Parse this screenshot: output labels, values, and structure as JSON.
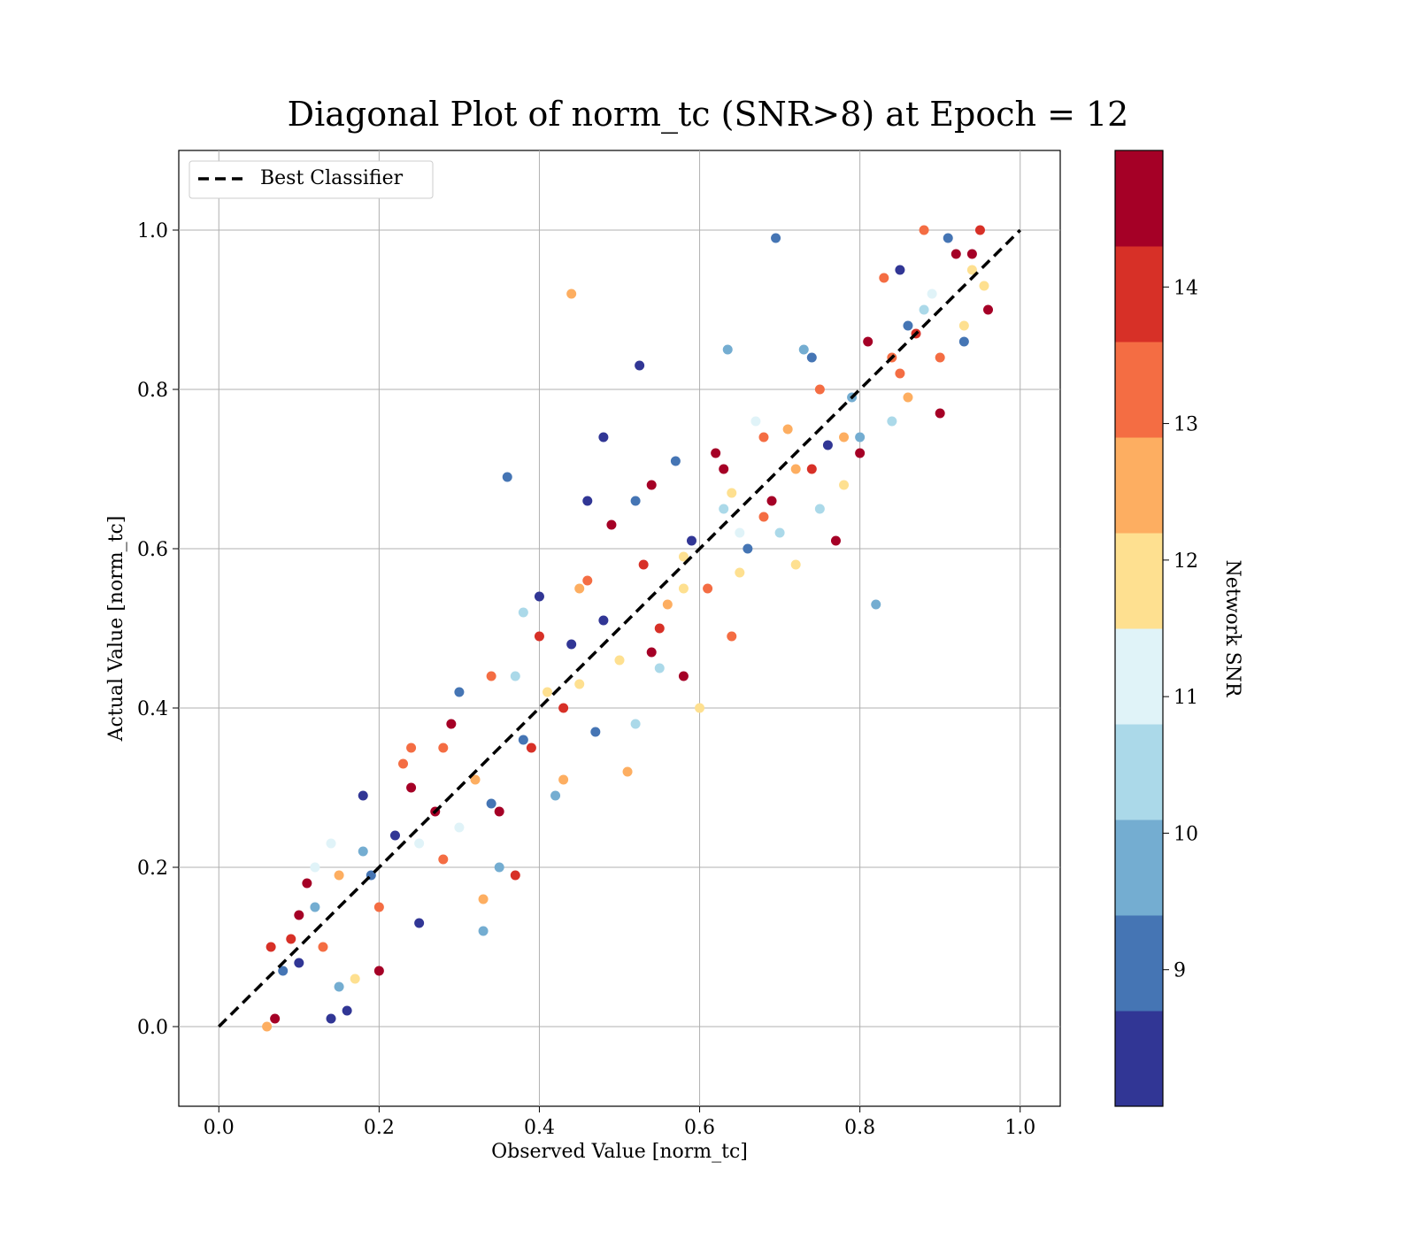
{
  "chart_data": {
    "type": "scatter",
    "title": "Diagonal Plot of norm_tc (SNR>8) at Epoch = 12",
    "xlabel": "Observed Value [norm_tc]",
    "ylabel": "Actual Value [norm_tc]",
    "xlim": [
      -0.05,
      1.05
    ],
    "ylim": [
      -0.1,
      1.1
    ],
    "xticks": [
      "0.0",
      "0.2",
      "0.4",
      "0.6",
      "0.8",
      "1.0"
    ],
    "yticks": [
      "0.0",
      "0.2",
      "0.4",
      "0.6",
      "0.8",
      "1.0"
    ],
    "grid": true,
    "legend": {
      "position": "top-left",
      "entries": [
        "Best Classifier"
      ]
    },
    "reference_line": {
      "label": "Best Classifier",
      "style": "dashed",
      "color": "#000000",
      "points": [
        [
          0,
          0
        ],
        [
          1,
          1
        ]
      ]
    },
    "colorbar": {
      "label": "Network SNR",
      "range": [
        8,
        15
      ],
      "ticks": [
        "9",
        "10",
        "11",
        "12",
        "13",
        "14"
      ],
      "tick_values": [
        9,
        10,
        11,
        12,
        13,
        14
      ],
      "colors": [
        "#313695",
        "#4575b4",
        "#74add1",
        "#abd9e9",
        "#e0f3f8",
        "#fee090",
        "#fdae61",
        "#f46d43",
        "#d73027",
        "#a50026"
      ]
    },
    "series": [
      {
        "points": [
          [
            0.06,
            0.0,
            12.5
          ],
          [
            0.07,
            0.01,
            14.5
          ],
          [
            0.065,
            0.1,
            13.8
          ],
          [
            0.08,
            0.07,
            9.2
          ],
          [
            0.09,
            0.11,
            14.2
          ],
          [
            0.1,
            0.08,
            8.5
          ],
          [
            0.11,
            0.18,
            14.6
          ],
          [
            0.12,
            0.15,
            9.8
          ],
          [
            0.13,
            0.1,
            13.2
          ],
          [
            0.14,
            0.23,
            10.8
          ],
          [
            0.15,
            0.19,
            12.8
          ],
          [
            0.16,
            0.02,
            8.6
          ],
          [
            0.17,
            0.06,
            11.5
          ],
          [
            0.18,
            0.29,
            8.4
          ],
          [
            0.19,
            0.19,
            8.8
          ],
          [
            0.2,
            0.07,
            14.7
          ],
          [
            0.22,
            0.24,
            8.7
          ],
          [
            0.23,
            0.33,
            12.9
          ],
          [
            0.24,
            0.3,
            14.4
          ],
          [
            0.25,
            0.23,
            11.4
          ],
          [
            0.27,
            0.27,
            14.6
          ],
          [
            0.28,
            0.35,
            13.0
          ],
          [
            0.29,
            0.38,
            14.5
          ],
          [
            0.3,
            0.42,
            9.1
          ],
          [
            0.32,
            0.31,
            12.7
          ],
          [
            0.33,
            0.12,
            9.7
          ],
          [
            0.34,
            0.44,
            13.1
          ],
          [
            0.35,
            0.27,
            14.8
          ],
          [
            0.36,
            0.69,
            9.3
          ],
          [
            0.37,
            0.44,
            10.3
          ],
          [
            0.38,
            0.52,
            10.5
          ],
          [
            0.39,
            0.35,
            13.8
          ],
          [
            0.4,
            0.54,
            8.5
          ],
          [
            0.41,
            0.42,
            12.1
          ],
          [
            0.42,
            0.29,
            9.9
          ],
          [
            0.43,
            0.4,
            14.1
          ],
          [
            0.44,
            0.92,
            12.8
          ],
          [
            0.45,
            0.55,
            12.4
          ],
          [
            0.46,
            0.66,
            8.6
          ],
          [
            0.47,
            0.37,
            9.2
          ],
          [
            0.48,
            0.74,
            8.3
          ],
          [
            0.49,
            0.63,
            14.7
          ],
          [
            0.5,
            0.46,
            11.8
          ],
          [
            0.51,
            0.32,
            12.6
          ],
          [
            0.52,
            0.66,
            8.9
          ],
          [
            0.525,
            0.83,
            8.5
          ],
          [
            0.53,
            0.58,
            13.9
          ],
          [
            0.54,
            0.68,
            14.6
          ],
          [
            0.55,
            0.45,
            10.2
          ],
          [
            0.56,
            0.53,
            12.3
          ],
          [
            0.57,
            0.71,
            9.0
          ],
          [
            0.58,
            0.59,
            11.6
          ],
          [
            0.59,
            0.61,
            8.4
          ],
          [
            0.6,
            0.4,
            12.0
          ],
          [
            0.61,
            0.55,
            13.5
          ],
          [
            0.62,
            0.72,
            14.3
          ],
          [
            0.63,
            0.65,
            10.7
          ],
          [
            0.635,
            0.85,
            9.7
          ],
          [
            0.64,
            0.49,
            13.6
          ],
          [
            0.65,
            0.57,
            12.2
          ],
          [
            0.66,
            0.6,
            8.8
          ],
          [
            0.67,
            0.76,
            11.3
          ],
          [
            0.68,
            0.74,
            13.4
          ],
          [
            0.69,
            0.66,
            14.9
          ],
          [
            0.695,
            0.99,
            9.2
          ],
          [
            0.7,
            0.62,
            10.6
          ],
          [
            0.71,
            0.75,
            12.4
          ],
          [
            0.72,
            0.58,
            11.9
          ],
          [
            0.73,
            0.85,
            9.6
          ],
          [
            0.74,
            0.7,
            14.2
          ],
          [
            0.75,
            0.8,
            13.0
          ],
          [
            0.76,
            0.73,
            8.6
          ],
          [
            0.77,
            0.61,
            14.8
          ],
          [
            0.78,
            0.68,
            11.7
          ],
          [
            0.79,
            0.79,
            10.1
          ],
          [
            0.8,
            0.74,
            9.4
          ],
          [
            0.81,
            0.86,
            14.4
          ],
          [
            0.82,
            0.53,
            9.9
          ],
          [
            0.83,
            0.94,
            13.3
          ],
          [
            0.84,
            0.76,
            10.4
          ],
          [
            0.85,
            0.95,
            8.7
          ],
          [
            0.86,
            0.79,
            12.6
          ],
          [
            0.87,
            0.87,
            14.1
          ],
          [
            0.88,
            1.0,
            13.5
          ],
          [
            0.89,
            0.92,
            11.2
          ],
          [
            0.9,
            0.84,
            12.9
          ],
          [
            0.91,
            0.99,
            9.3
          ],
          [
            0.92,
            0.97,
            14.6
          ],
          [
            0.93,
            0.86,
            8.9
          ],
          [
            0.94,
            0.95,
            12.2
          ],
          [
            0.95,
            1.0,
            14.2
          ],
          [
            0.955,
            0.93,
            11.8
          ],
          [
            0.96,
            0.9,
            14.7
          ],
          [
            0.12,
            0.2,
            11.1
          ],
          [
            0.15,
            0.05,
            9.5
          ],
          [
            0.25,
            0.13,
            8.4
          ],
          [
            0.33,
            0.16,
            12.3
          ],
          [
            0.37,
            0.19,
            13.9
          ],
          [
            0.43,
            0.31,
            12.7
          ],
          [
            0.52,
            0.38,
            10.3
          ],
          [
            0.46,
            0.56,
            13.4
          ],
          [
            0.4,
            0.49,
            13.8
          ],
          [
            0.58,
            0.44,
            14.7
          ],
          [
            0.63,
            0.7,
            14.9
          ],
          [
            0.72,
            0.7,
            12.5
          ],
          [
            0.8,
            0.72,
            14.8
          ],
          [
            0.86,
            0.88,
            9.1
          ],
          [
            0.9,
            0.77,
            14.5
          ],
          [
            0.93,
            0.88,
            12.0
          ],
          [
            0.2,
            0.15,
            13.6
          ],
          [
            0.3,
            0.25,
            11.4
          ],
          [
            0.35,
            0.2,
            9.9
          ],
          [
            0.45,
            0.43,
            12.1
          ],
          [
            0.55,
            0.5,
            14.0
          ],
          [
            0.65,
            0.62,
            11.0
          ],
          [
            0.75,
            0.65,
            10.2
          ],
          [
            0.85,
            0.82,
            13.2
          ],
          [
            0.1,
            0.14,
            14.7
          ],
          [
            0.18,
            0.22,
            9.6
          ],
          [
            0.28,
            0.21,
            13.2
          ],
          [
            0.38,
            0.36,
            9.0
          ],
          [
            0.48,
            0.51,
            8.6
          ],
          [
            0.58,
            0.55,
            11.5
          ],
          [
            0.68,
            0.64,
            13.0
          ],
          [
            0.78,
            0.74,
            12.3
          ],
          [
            0.88,
            0.9,
            10.4
          ],
          [
            0.14,
            0.01,
            8.5
          ],
          [
            0.24,
            0.35,
            13.1
          ],
          [
            0.34,
            0.28,
            9.3
          ],
          [
            0.44,
            0.48,
            8.2
          ],
          [
            0.54,
            0.47,
            14.4
          ],
          [
            0.64,
            0.67,
            11.9
          ],
          [
            0.74,
            0.84,
            9.2
          ],
          [
            0.84,
            0.84,
            13.6
          ],
          [
            0.94,
            0.97,
            14.9
          ]
        ]
      }
    ]
  }
}
